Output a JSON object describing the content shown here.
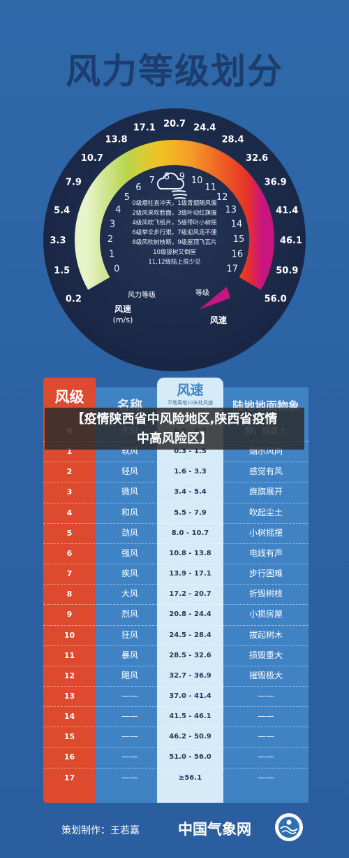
{
  "title": "风力等级划分",
  "gauge": {
    "speed_ticks": [
      "0.2",
      "1.5",
      "3.3",
      "5.4",
      "7.9",
      "10.7",
      "13.8",
      "17.1",
      "20.7",
      "24.4",
      "28.4",
      "32.6",
      "36.9",
      "41.4",
      "46.1",
      "50.9",
      "56.0"
    ],
    "level_ticks": [
      "0",
      "1",
      "2",
      "3",
      "4",
      "5",
      "6",
      "7",
      "8",
      "9",
      "10",
      "11",
      "12",
      "13",
      "14",
      "15",
      "16",
      "17"
    ],
    "center_lines": [
      "0级烟柱直冲天，1级青烟随风偏",
      "2级风来吹脸面，3级叶动红旗展",
      "4级风吹飞纸片，5级带叶小树摇",
      "6级举伞步行艰，7级迎风走不便",
      "8级风吹树枝断，9级屋顶飞瓦片",
      "10级拔树又倒屋",
      "11,12级陆上很少见"
    ],
    "label_windspeed_left": "风速",
    "label_windspeed_unit": "(m/s)",
    "label_level": "风力等级",
    "label_grade": "等级",
    "label_windspeed_right": "风速"
  },
  "table": {
    "headers": {
      "level": "风级",
      "name": "名称",
      "speed": "风速",
      "speed_sub": "平地离地10米处风速",
      "effect": "陆地地面物象"
    },
    "rows": [
      {
        "level": "0",
        "name": "无风",
        "speed": "0.0 - 0.2",
        "effect": "静，烟直上"
      },
      {
        "level": "1",
        "name": "软风",
        "speed": "0.3 - 1.5",
        "effect": "烟示风向"
      },
      {
        "level": "2",
        "name": "轻风",
        "speed": "1.6 - 3.3",
        "effect": "感觉有风"
      },
      {
        "level": "3",
        "name": "微风",
        "speed": "3.4 - 5.4",
        "effect": "旌旗展开"
      },
      {
        "level": "4",
        "name": "和风",
        "speed": "5.5 - 7.9",
        "effect": "吹起尘土"
      },
      {
        "level": "5",
        "name": "劲风",
        "speed": "8.0 - 10.7",
        "effect": "小树摇摆"
      },
      {
        "level": "6",
        "name": "强风",
        "speed": "10.8 - 13.8",
        "effect": "电线有声"
      },
      {
        "level": "7",
        "name": "疾风",
        "speed": "13.9 - 17.1",
        "effect": "步行困难"
      },
      {
        "level": "8",
        "name": "大风",
        "speed": "17.2 - 20.7",
        "effect": "折毁树枝"
      },
      {
        "level": "9",
        "name": "烈风",
        "speed": "20.8 - 24.4",
        "effect": "小损房屋"
      },
      {
        "level": "10",
        "name": "狂风",
        "speed": "24.5 - 28.4",
        "effect": "拔起树木"
      },
      {
        "level": "11",
        "name": "暴风",
        "speed": "28.5 - 32.6",
        "effect": "损毁重大"
      },
      {
        "level": "12",
        "name": "飓风",
        "speed": "32.7 - 36.9",
        "effect": "摧毁极大"
      },
      {
        "level": "13",
        "name": "——",
        "speed": "37.0 - 41.4",
        "effect": "——"
      },
      {
        "level": "14",
        "name": "——",
        "speed": "41.5 - 46.1",
        "effect": "——"
      },
      {
        "level": "15",
        "name": "——",
        "speed": "46.2 - 50.9",
        "effect": "——"
      },
      {
        "level": "16",
        "name": "——",
        "speed": "51.0 - 56.0",
        "effect": "——"
      },
      {
        "level": "17",
        "name": "——",
        "speed": "≥56.1",
        "effect": "——"
      }
    ]
  },
  "overlay": {
    "line1": "【疫情陕西省中风险地区,陕西省疫情",
    "line2": "中高风险区】"
  },
  "footer": {
    "credit": "策划制作：王若嘉",
    "organization": "中国气象网"
  },
  "colors": {
    "background": "#2c62a3",
    "title": "#1c3d6e",
    "gauge_dial": "#1d2b4a",
    "level_column": "#de4a2d",
    "speed_column": "#d6ebf8",
    "table_body": "#3f83c5",
    "arc_start": "#e7f3c8",
    "arc_mid": "#f5a02a",
    "arc_end": "#c9157f"
  },
  "icons": [
    "cloud-wind-icon",
    "cma-logo-icon"
  ]
}
